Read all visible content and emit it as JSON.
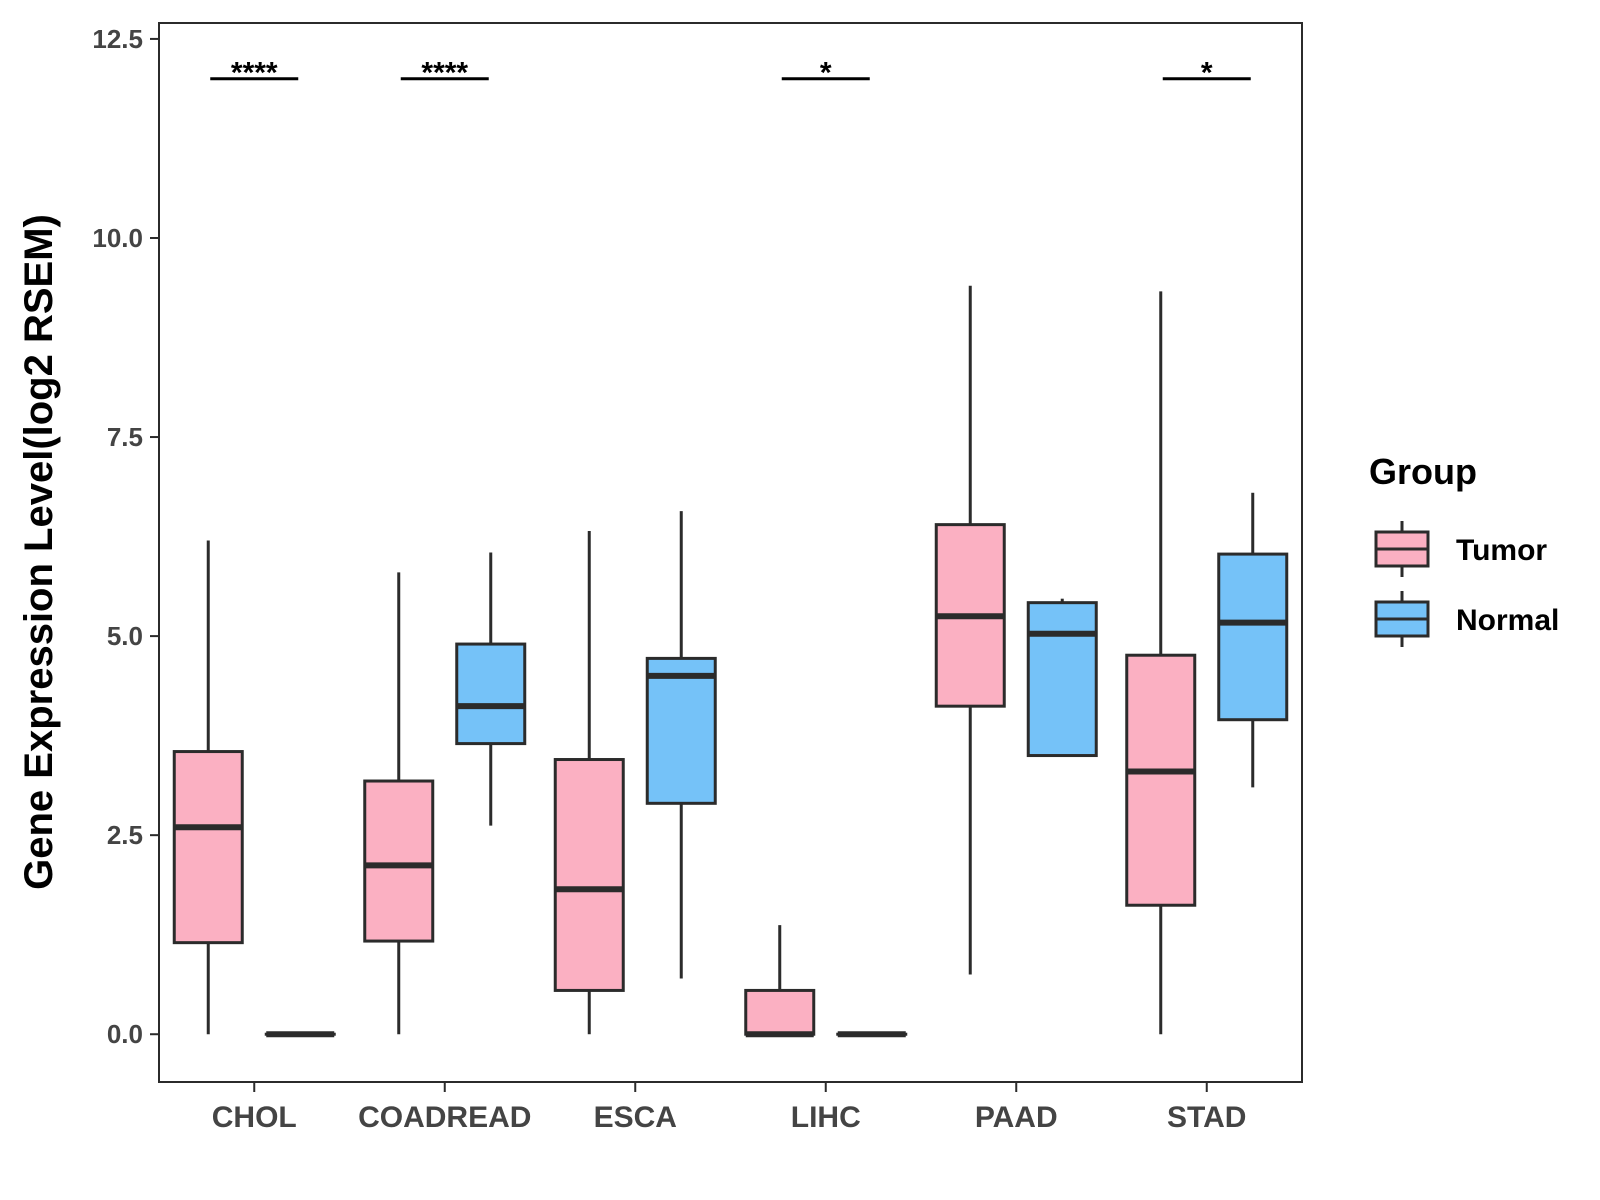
{
  "chart_data": {
    "type": "boxplot",
    "title": "",
    "xlabel": "",
    "ylabel": "Gene Expression Level(log2 RSEM)",
    "ylim": [
      -0.6,
      12.7
    ],
    "y_ticks": [
      0.0,
      2.5,
      5.0,
      7.5,
      10.0,
      12.5
    ],
    "y_tick_labels": [
      "0.0",
      "2.5",
      "5.0",
      "7.5",
      "10.0",
      "12.5"
    ],
    "categories": [
      "CHOL",
      "COADREAD",
      "ESCA",
      "LIHC",
      "PAAD",
      "STAD"
    ],
    "grid": false,
    "legend": {
      "title": "Group",
      "position": "right",
      "entries": [
        {
          "name": "Tumor",
          "color": "#FBB0C2"
        },
        {
          "name": "Normal",
          "color": "#75C2F8"
        }
      ]
    },
    "series": [
      {
        "name": "Tumor",
        "color": "#FBB0C2",
        "boxes": [
          {
            "category": "CHOL",
            "min": 0.0,
            "q1": 1.15,
            "median": 2.6,
            "q3": 3.55,
            "max": 6.2
          },
          {
            "category": "COADREAD",
            "min": 0.0,
            "q1": 1.17,
            "median": 2.12,
            "q3": 3.18,
            "max": 5.8
          },
          {
            "category": "ESCA",
            "min": 0.0,
            "q1": 0.55,
            "median": 1.82,
            "q3": 3.45,
            "max": 6.32
          },
          {
            "category": "LIHC",
            "min": 0.0,
            "q1": 0.0,
            "median": 0.0,
            "q3": 0.55,
            "max": 1.37
          },
          {
            "category": "PAAD",
            "min": 0.75,
            "q1": 4.12,
            "median": 5.25,
            "q3": 6.4,
            "max": 9.4
          },
          {
            "category": "STAD",
            "min": 0.0,
            "q1": 1.62,
            "median": 3.3,
            "q3": 4.76,
            "max": 9.33
          }
        ]
      },
      {
        "name": "Normal",
        "color": "#75C2F8",
        "boxes": [
          {
            "category": "CHOL",
            "min": 0.0,
            "q1": 0.0,
            "median": 0.0,
            "q3": 0.0,
            "max": 0.0
          },
          {
            "category": "COADREAD",
            "min": 2.62,
            "q1": 3.65,
            "median": 4.12,
            "q3": 4.9,
            "max": 6.05
          },
          {
            "category": "ESCA",
            "min": 0.7,
            "q1": 2.9,
            "median": 4.5,
            "q3": 4.72,
            "max": 6.57
          },
          {
            "category": "LIHC",
            "min": 0.0,
            "q1": 0.0,
            "median": 0.0,
            "q3": 0.0,
            "max": 0.0
          },
          {
            "category": "PAAD",
            "min": 3.5,
            "q1": 3.5,
            "median": 5.03,
            "q3": 5.42,
            "max": 5.47
          },
          {
            "category": "STAD",
            "min": 3.1,
            "q1": 3.95,
            "median": 5.17,
            "q3": 6.03,
            "max": 6.8
          }
        ]
      }
    ],
    "significance": [
      {
        "category": "CHOL",
        "label": "****",
        "y": 12.0
      },
      {
        "category": "COADREAD",
        "label": "****",
        "y": 12.0
      },
      {
        "category": "LIHC",
        "label": "*",
        "y": 12.0
      },
      {
        "category": "STAD",
        "label": "*",
        "y": 12.0
      }
    ]
  }
}
